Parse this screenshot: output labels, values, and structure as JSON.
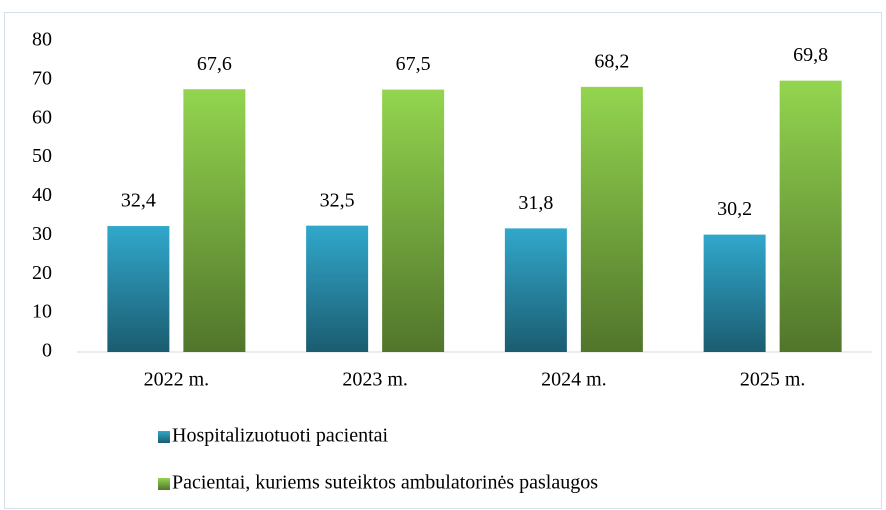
{
  "chart_data": {
    "type": "bar",
    "categories": [
      "2022 m.",
      "2023 m.",
      "2024 m.",
      "2025 m."
    ],
    "series": [
      {
        "name": "Hospitalizuotuoti pacientai",
        "color": "#31a8cc",
        "values": [
          32.4,
          32.5,
          31.8,
          30.2
        ],
        "value_labels": [
          "32,4",
          "32,5",
          "31,8",
          "30,2"
        ]
      },
      {
        "name": "Pacientai, kuriems suteiktos ambulatorinės paslaugos",
        "color": "#93d54f",
        "values": [
          67.6,
          67.5,
          68.2,
          69.8
        ],
        "value_labels": [
          "67,6",
          "67,5",
          "68,2",
          "69,8"
        ]
      }
    ],
    "ylim": [
      0,
      80
    ],
    "yticks": [
      0,
      10,
      20,
      30,
      40,
      50,
      60,
      70,
      80
    ],
    "grid": false
  }
}
